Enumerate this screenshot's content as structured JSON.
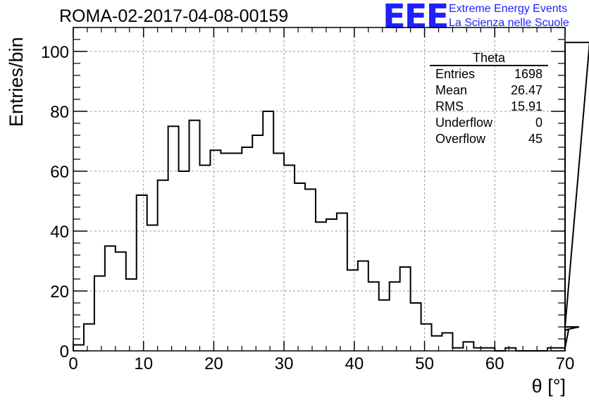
{
  "header": {
    "run_title": "ROMA-02-2017-04-08-00159",
    "logo_text": "EEE",
    "logo_line1": "Extreme Energy Events",
    "logo_line2": "La Scienza nelle Scuole",
    "logo_color": "#1f1fff"
  },
  "stats_box": {
    "title": "Theta",
    "rows": [
      {
        "label": "Entries",
        "value": "1698"
      },
      {
        "label": "Mean",
        "value": "26.47"
      },
      {
        "label": "RMS",
        "value": "15.91"
      },
      {
        "label": "Underflow",
        "value": "0"
      },
      {
        "label": "Overflow",
        "value": "45"
      }
    ]
  },
  "chart_data": {
    "type": "bar",
    "style": "step-histogram",
    "title": "",
    "xlabel": "θ [°]",
    "ylabel": "Entries/bin",
    "xlim": [
      0,
      70
    ],
    "ylim": [
      0,
      108
    ],
    "bin_width": 1.5,
    "x_ticks": [
      0,
      10,
      20,
      30,
      40,
      50,
      60,
      70
    ],
    "y_ticks": [
      0,
      20,
      40,
      60,
      80,
      100
    ],
    "grid": true,
    "values": [
      2,
      9,
      25,
      35,
      33,
      24,
      52,
      42,
      57,
      75,
      60,
      77,
      62,
      67,
      66,
      66,
      68,
      72,
      80,
      66,
      62,
      56,
      54,
      43,
      44,
      46,
      27,
      30,
      23,
      17,
      23,
      28,
      16,
      9,
      5,
      6,
      1,
      3,
      1,
      1,
      0,
      1,
      0,
      0,
      0,
      1,
      1,
      7,
      8,
      103
    ]
  }
}
